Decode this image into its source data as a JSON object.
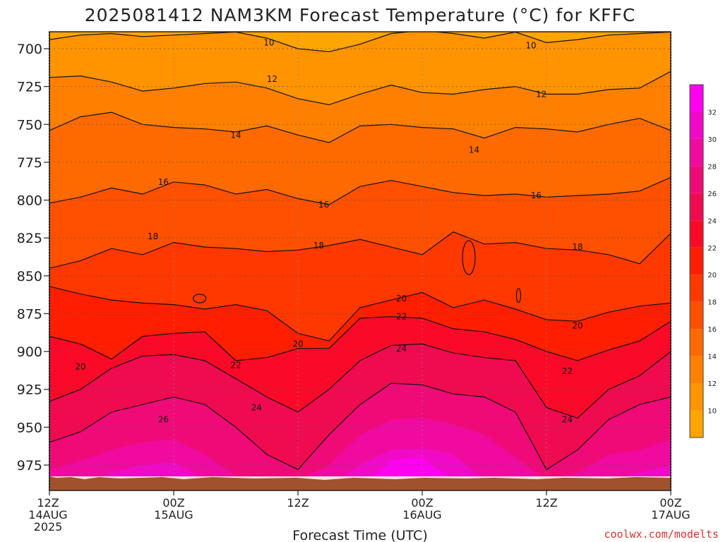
{
  "chart_data": {
    "type": "heatmap",
    "title": "2025081412 NAM3KM Forecast Temperature (°C) for KFFC",
    "xlabel": "Forecast Time (UTC)",
    "ylabel": "",
    "y_axis_ticks": [
      700,
      725,
      750,
      775,
      800,
      825,
      850,
      875,
      900,
      925,
      950,
      975
    ],
    "ylim": [
      988,
      688
    ],
    "x_axis_ticks": [
      {
        "hour": 0,
        "line1": "12Z",
        "line2": "14AUG",
        "line3": "2025"
      },
      {
        "hour": 12,
        "line1": "00Z",
        "line2": "15AUG",
        "line3": ""
      },
      {
        "hour": 24,
        "line1": "12Z",
        "line2": "",
        "line3": ""
      },
      {
        "hour": 36,
        "line1": "00Z",
        "line2": "16AUG",
        "line3": ""
      },
      {
        "hour": 48,
        "line1": "12Z",
        "line2": "",
        "line3": ""
      },
      {
        "hour": 60,
        "line1": "00Z",
        "line2": "17AUG",
        "line3": ""
      }
    ],
    "xlim": [
      0,
      60
    ],
    "colorbar_ticks": [
      10,
      12,
      14,
      16,
      18,
      20,
      22,
      24,
      26,
      28,
      30,
      32
    ],
    "colorbar_range": [
      8,
      34
    ],
    "colors": [
      "#ffa500",
      "#ff9300",
      "#ff8000",
      "#ff6a00",
      "#ff5000",
      "#ff3800",
      "#ff1e00",
      "#fa0a28",
      "#f00a50",
      "#f00a78",
      "#f00aa0",
      "#f00ac8",
      "#ff00f0"
    ],
    "grid": true,
    "contour_levels": [
      10,
      12,
      14,
      16,
      18,
      20,
      22,
      24,
      26
    ],
    "contour_labels": [
      {
        "text": "10",
        "hour": 21.2,
        "pressure": 696
      },
      {
        "text": "10",
        "hour": 46.5,
        "pressure": 698
      },
      {
        "text": "12",
        "hour": 21.5,
        "pressure": 720
      },
      {
        "text": "12",
        "hour": 47.5,
        "pressure": 730
      },
      {
        "text": "14",
        "hour": 18.0,
        "pressure": 757
      },
      {
        "text": "14",
        "hour": 41.0,
        "pressure": 767
      },
      {
        "text": "16",
        "hour": 11.0,
        "pressure": 788
      },
      {
        "text": "16",
        "hour": 26.5,
        "pressure": 803
      },
      {
        "text": "16",
        "hour": 47.0,
        "pressure": 797
      },
      {
        "text": "18",
        "hour": 10.0,
        "pressure": 824
      },
      {
        "text": "18",
        "hour": 26.0,
        "pressure": 830
      },
      {
        "text": "18",
        "hour": 51.0,
        "pressure": 831
      },
      {
        "text": "20",
        "hour": 34.0,
        "pressure": 865
      },
      {
        "text": "20",
        "hour": 24.0,
        "pressure": 895
      },
      {
        "text": "20",
        "hour": 51.0,
        "pressure": 883
      },
      {
        "text": "20",
        "hour": 3.0,
        "pressure": 910
      },
      {
        "text": "22",
        "hour": 34.0,
        "pressure": 877
      },
      {
        "text": "22",
        "hour": 18.0,
        "pressure": 909
      },
      {
        "text": "22",
        "hour": 50.0,
        "pressure": 913
      },
      {
        "text": "24",
        "hour": 34.0,
        "pressure": 898
      },
      {
        "text": "24",
        "hour": 20.0,
        "pressure": 937
      },
      {
        "text": "24",
        "hour": 50.0,
        "pressure": 945
      },
      {
        "text": "26",
        "hour": 11.0,
        "pressure": 945
      }
    ]
  },
  "credit": "coolwx.com/modelts"
}
